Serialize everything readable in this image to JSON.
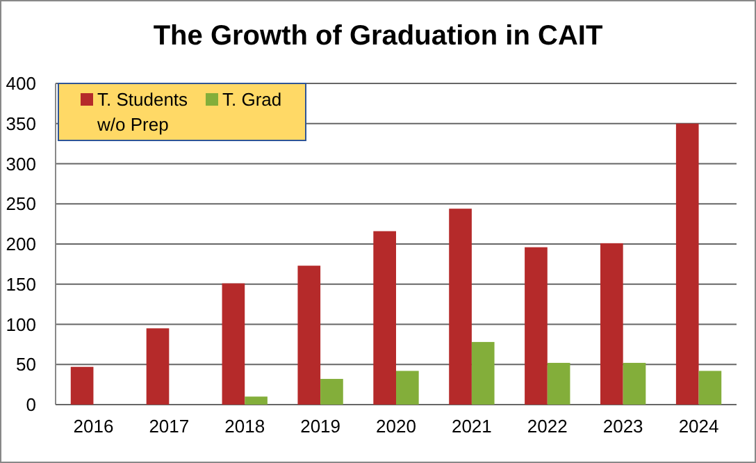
{
  "chart_data": {
    "type": "bar",
    "title": "The Growth of Graduation in CAIT",
    "categories": [
      "2016",
      "2017",
      "2018",
      "2019",
      "2020",
      "2021",
      "2022",
      "2023",
      "2024"
    ],
    "series": [
      {
        "name": "T. Students",
        "color": "#b52a2a",
        "values": [
          47,
          95,
          151,
          173,
          216,
          244,
          196,
          201,
          350
        ]
      },
      {
        "name": "T. Grad w/o Prep",
        "color": "#83ae3a",
        "values": [
          0,
          0,
          10,
          32,
          42,
          78,
          52,
          52,
          42
        ]
      }
    ],
    "ylim": [
      0,
      400
    ],
    "yticks": [
      0,
      50,
      100,
      150,
      200,
      250,
      300,
      350,
      400
    ],
    "grid": "y",
    "legend": "top left"
  }
}
